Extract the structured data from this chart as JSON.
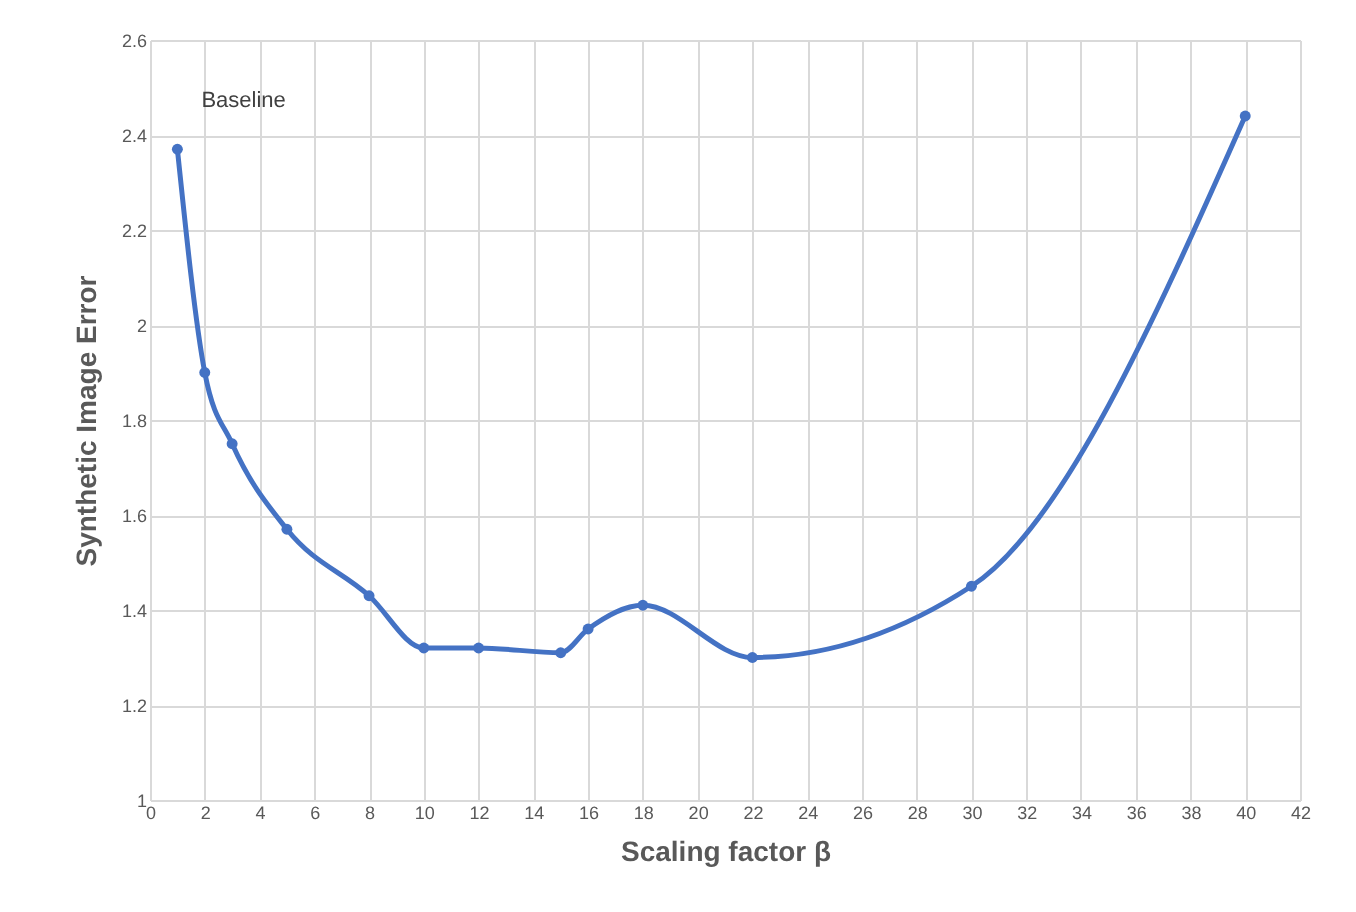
{
  "chart_data": {
    "type": "line",
    "xlabel": "Scaling factor β",
    "ylabel": "Synthetic Image Error",
    "x": [
      1,
      2,
      3,
      5,
      8,
      10,
      12,
      15,
      16,
      18,
      22,
      30,
      40
    ],
    "series": [
      {
        "color": "#4472c4",
        "values": [
          2.37,
          1.9,
          1.75,
          1.57,
          1.43,
          1.32,
          1.32,
          1.31,
          1.36,
          1.41,
          1.3,
          1.45,
          2.44
        ]
      }
    ],
    "xlim": [
      0,
      42
    ],
    "xticks": [
      0,
      2,
      4,
      6,
      8,
      10,
      12,
      14,
      16,
      18,
      20,
      22,
      24,
      26,
      28,
      30,
      32,
      34,
      36,
      38,
      40,
      42
    ],
    "ylim": [
      1,
      2.6
    ],
    "yticks": [
      1,
      1.2,
      1.4,
      1.6,
      1.8,
      2,
      2.2,
      2.4,
      2.6
    ],
    "grid": true,
    "marker": "circle",
    "line_style": "solid",
    "annotations": [
      {
        "text": "Baseline",
        "x": 1,
        "y": 2.37
      }
    ]
  }
}
